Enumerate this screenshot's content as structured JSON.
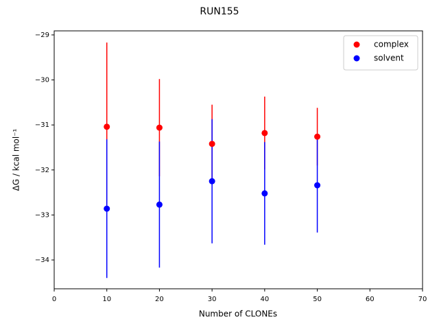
{
  "chart_data": {
    "type": "errorbar-scatter",
    "title": "RUN155",
    "x_label": "Number of CLONEs",
    "y_label": "ΔG / kcal mol⁻¹",
    "xlim": [
      0,
      70
    ],
    "ylim": [
      -34.64,
      -28.91
    ],
    "xticks": [
      0,
      10,
      20,
      30,
      40,
      50,
      60,
      70
    ],
    "yticks": [
      {
        "value": -34,
        "label": "−34"
      },
      {
        "value": -33,
        "label": "−33"
      },
      {
        "value": -32,
        "label": "−32"
      },
      {
        "value": -31,
        "label": "−31"
      },
      {
        "value": -30,
        "label": "−30"
      },
      {
        "value": -29,
        "label": "−29"
      }
    ],
    "legend": "upper right",
    "series": [
      {
        "name": "complex",
        "color": "#ff0000",
        "x": [
          10,
          20,
          30,
          40,
          50
        ],
        "values": [
          -31.04,
          -31.06,
          -31.42,
          -31.18,
          -31.26
        ],
        "errors": [
          1.87,
          1.08,
          0.87,
          0.81,
          0.64
        ]
      },
      {
        "name": "solvent",
        "color": "#0000ff",
        "x": [
          10,
          20,
          30,
          40,
          50
        ],
        "values": [
          -32.86,
          -32.77,
          -32.25,
          -32.52,
          -32.34
        ],
        "errors": [
          1.54,
          1.4,
          1.38,
          1.14,
          1.05
        ]
      }
    ]
  }
}
